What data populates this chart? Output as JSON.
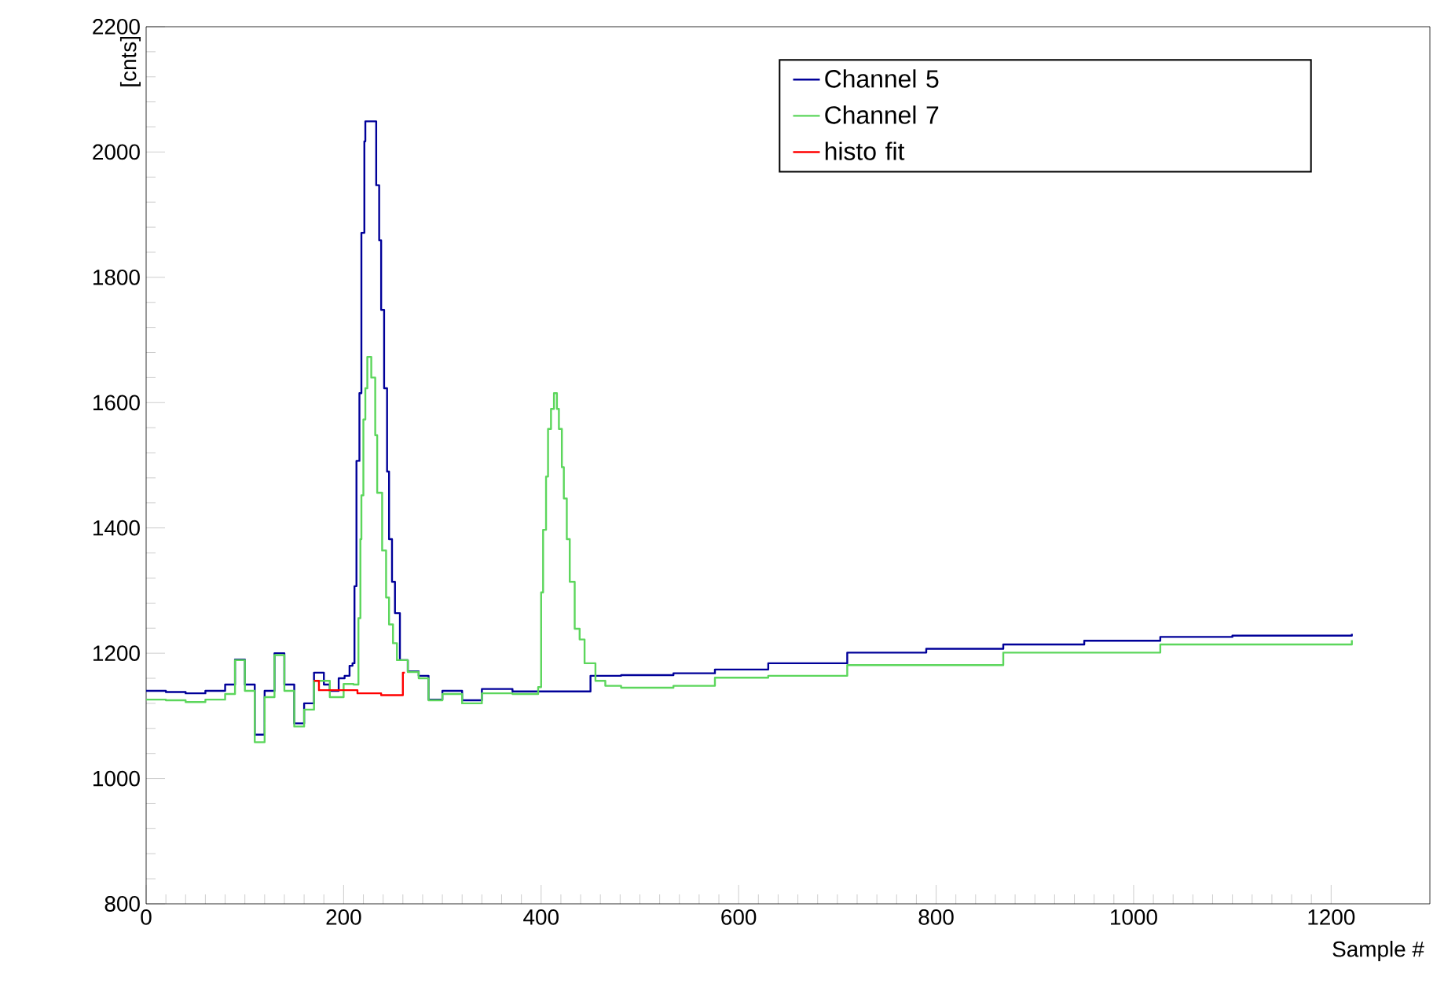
{
  "chart_data": {
    "type": "step",
    "xlabel": "Sample #",
    "ylabel": "[cnts]",
    "xlim": [
      0,
      1300
    ],
    "xticks": [
      0,
      200,
      400,
      600,
      800,
      1000,
      1200
    ],
    "ylim": [
      800,
      2200
    ],
    "yticks": [
      800,
      1000,
      1200,
      1400,
      1600,
      1800,
      2000,
      2200
    ],
    "grid": false,
    "legend": "top right",
    "series": [
      {
        "name": "Channel 5",
        "color": "#000099",
        "x": [
          0,
          20,
          40,
          60,
          80,
          90,
          100,
          110,
          120,
          130,
          140,
          150,
          160,
          170,
          180,
          186,
          195,
          201,
          206,
          209,
          211,
          213,
          216,
          218,
          221,
          222,
          232,
          233,
          236,
          238,
          241,
          244,
          246,
          249,
          252,
          257,
          265,
          276,
          286,
          300,
          320,
          340,
          371,
          397,
          423,
          450,
          481,
          534,
          576,
          630,
          710,
          790,
          868,
          950,
          1027,
          1100,
          1221
        ],
        "values": [
          1140,
          1138,
          1136,
          1140,
          1150,
          1190,
          1150,
          1070,
          1140,
          1200,
          1150,
          1088,
          1120,
          1169,
          1150,
          1140,
          1160,
          1164,
          1180,
          1184,
          1307,
          1507,
          1615,
          1871,
          2017,
          2049,
          2049,
          1947,
          1859,
          1748,
          1623,
          1490,
          1382,
          1314,
          1264,
          1189,
          1171,
          1164,
          1126,
          1140,
          1125,
          1143,
          1139,
          1139,
          1139,
          1164,
          1165,
          1168,
          1174,
          1184,
          1201,
          1207,
          1214,
          1220,
          1226,
          1228,
          1231
        ]
      },
      {
        "name": "Channel 7",
        "color": "#5cd65c",
        "x": [
          0,
          20,
          40,
          60,
          80,
          90,
          100,
          110,
          120,
          130,
          140,
          150,
          160,
          170,
          186,
          200,
          210,
          215,
          217,
          218,
          220,
          222,
          224,
          226,
          228,
          232,
          234,
          239,
          243,
          246,
          250,
          254,
          265,
          276,
          286,
          300,
          320,
          340,
          371,
          397,
          400,
          402,
          405,
          407,
          410,
          413,
          416,
          418,
          421,
          423,
          426,
          429,
          434,
          439,
          444,
          455,
          465,
          481,
          534,
          576,
          630,
          710,
          868,
          1027,
          1221
        ],
        "values": [
          1126,
          1125,
          1122,
          1126,
          1135,
          1189,
          1140,
          1058,
          1130,
          1197,
          1140,
          1083,
          1110,
          1156,
          1130,
          1151,
          1150,
          1256,
          1382,
          1452,
          1573,
          1623,
          1673,
          1673,
          1640,
          1548,
          1456,
          1364,
          1289,
          1246,
          1216,
          1189,
          1170,
          1160,
          1125,
          1135,
          1120,
          1136,
          1135,
          1146,
          1297,
          1397,
          1482,
          1558,
          1590,
          1615,
          1590,
          1558,
          1497,
          1447,
          1382,
          1314,
          1239,
          1222,
          1184,
          1156,
          1148,
          1145,
          1148,
          1161,
          1164,
          1181,
          1201,
          1214,
          1221
        ]
      },
      {
        "name": "histo fit",
        "color": "#ff0000",
        "x": [
          170,
          175,
          214,
          238,
          260,
          262
        ],
        "values": [
          1156,
          1141,
          1136,
          1133,
          1169,
          1169
        ]
      }
    ]
  }
}
